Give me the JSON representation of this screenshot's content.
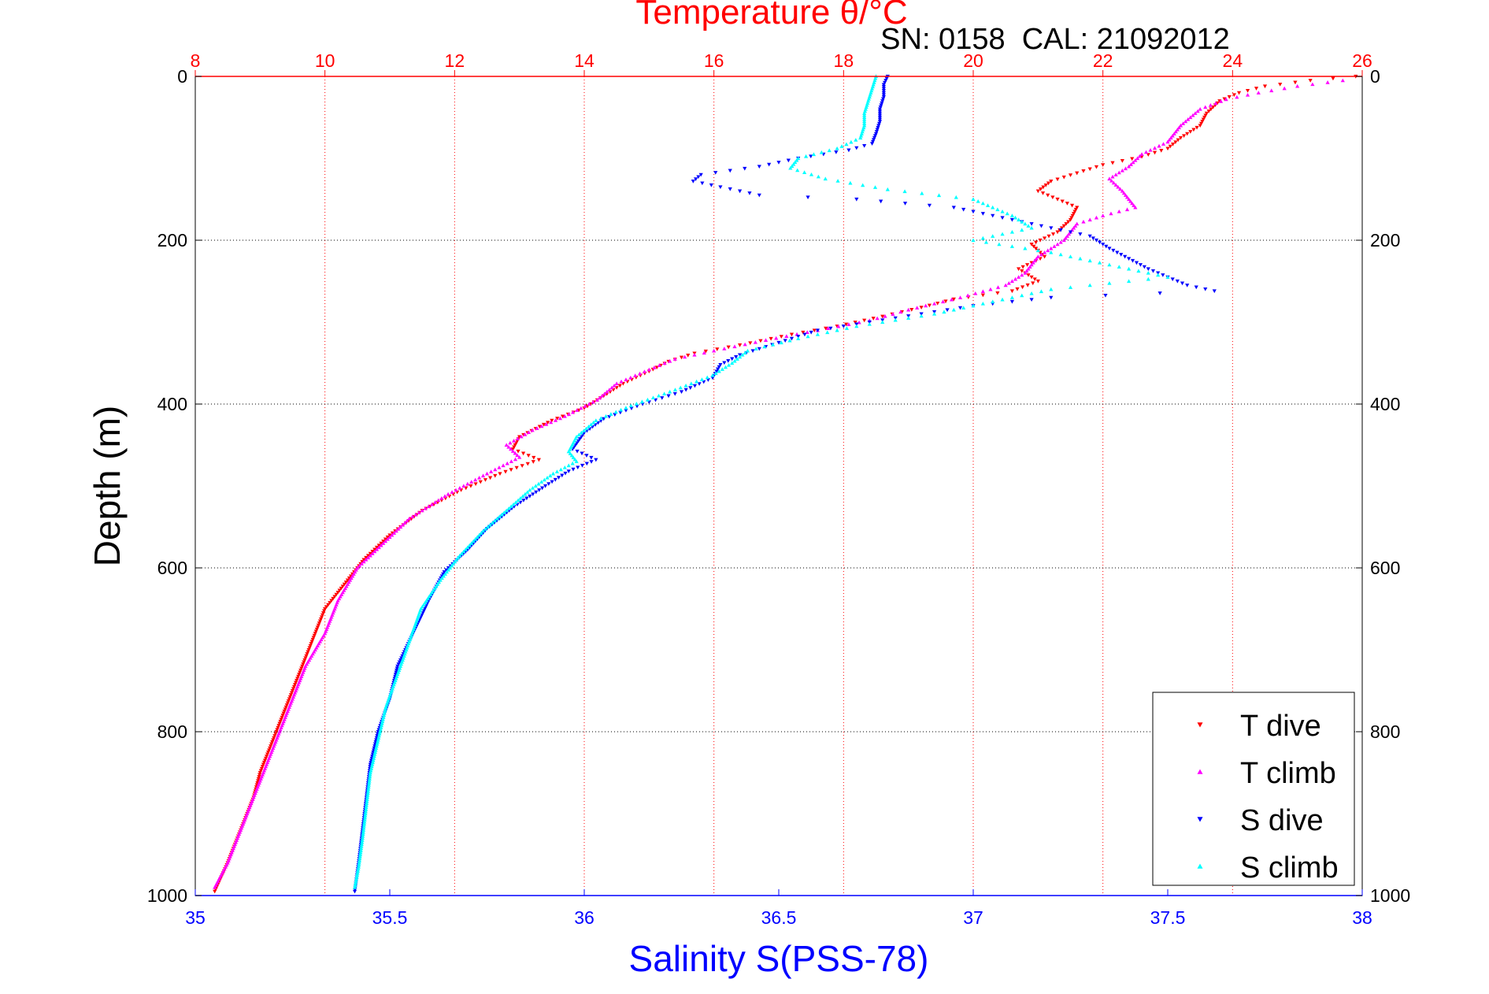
{
  "chart_data": {
    "type": "scatter",
    "title": "Temperature θ/°C",
    "subtitle": "SN: 0158  CAL: 21092012",
    "xlabel": "Salinity S(PSS-78)",
    "ylabel": "Depth (m)",
    "x_bottom": {
      "range": [
        35,
        38
      ],
      "ticks": [
        "35",
        "35.5",
        "36",
        "36.5",
        "37",
        "37.5",
        "38"
      ],
      "color": "#0000ff"
    },
    "x_top": {
      "range": [
        8,
        26
      ],
      "ticks": [
        "8",
        "10",
        "12",
        "14",
        "16",
        "18",
        "20",
        "22",
        "24",
        "26"
      ],
      "color": "#ff0000"
    },
    "y": {
      "range": [
        0,
        1000
      ],
      "reversed": true,
      "ticks": [
        "0",
        "200",
        "400",
        "600",
        "800",
        "1000"
      ]
    },
    "grid": true,
    "legend_position": "bottom-right",
    "series": [
      {
        "name": "T dive",
        "axis": "temperature",
        "color": "#ff0000",
        "marker": "triangle-down",
        "points": [
          [
            25.9,
            0
          ],
          [
            25.2,
            5
          ],
          [
            24.5,
            12
          ],
          [
            24.1,
            20
          ],
          [
            23.8,
            30
          ],
          [
            23.6,
            45
          ],
          [
            23.5,
            60
          ],
          [
            23.2,
            75
          ],
          [
            23.0,
            88
          ],
          [
            22.6,
            98
          ],
          [
            22.0,
            108
          ],
          [
            21.6,
            118
          ],
          [
            21.2,
            128
          ],
          [
            21.0,
            140
          ],
          [
            21.3,
            150
          ],
          [
            21.6,
            160
          ],
          [
            21.5,
            175
          ],
          [
            21.3,
            190
          ],
          [
            20.9,
            205
          ],
          [
            21.1,
            220
          ],
          [
            20.7,
            235
          ],
          [
            21.0,
            250
          ],
          [
            20.6,
            262
          ],
          [
            19.7,
            272
          ],
          [
            19.2,
            282
          ],
          [
            18.6,
            293
          ],
          [
            17.9,
            305
          ],
          [
            17.2,
            315
          ],
          [
            16.4,
            328
          ],
          [
            15.7,
            338
          ],
          [
            15.3,
            348
          ],
          [
            15.0,
            360
          ],
          [
            14.6,
            375
          ],
          [
            14.3,
            390
          ],
          [
            14.0,
            405
          ],
          [
            13.5,
            420
          ],
          [
            13.0,
            440
          ],
          [
            12.9,
            455
          ],
          [
            13.3,
            468
          ],
          [
            12.7,
            485
          ],
          [
            12.1,
            505
          ],
          [
            11.5,
            530
          ],
          [
            11.0,
            560
          ],
          [
            10.6,
            590
          ],
          [
            10.3,
            620
          ],
          [
            10.0,
            650
          ],
          [
            9.8,
            690
          ],
          [
            9.6,
            730
          ],
          [
            9.4,
            770
          ],
          [
            9.2,
            810
          ],
          [
            9.0,
            850
          ],
          [
            8.9,
            880
          ],
          [
            8.7,
            920
          ],
          [
            8.5,
            960
          ],
          [
            8.3,
            995
          ]
        ]
      },
      {
        "name": "T climb",
        "axis": "temperature",
        "color": "#ff00ff",
        "marker": "triangle-up",
        "points": [
          [
            25.7,
            5
          ],
          [
            25.0,
            12
          ],
          [
            24.4,
            20
          ],
          [
            23.9,
            28
          ],
          [
            23.5,
            40
          ],
          [
            23.2,
            60
          ],
          [
            23.0,
            80
          ],
          [
            22.6,
            95
          ],
          [
            22.4,
            110
          ],
          [
            22.1,
            125
          ],
          [
            22.3,
            140
          ],
          [
            22.5,
            160
          ],
          [
            22.0,
            170
          ],
          [
            21.6,
            180
          ],
          [
            21.4,
            200
          ],
          [
            21.0,
            220
          ],
          [
            20.8,
            240
          ],
          [
            20.5,
            255
          ],
          [
            19.8,
            270
          ],
          [
            19.0,
            285
          ],
          [
            18.4,
            298
          ],
          [
            17.6,
            310
          ],
          [
            16.8,
            322
          ],
          [
            16.0,
            335
          ],
          [
            15.4,
            345
          ],
          [
            15.0,
            358
          ],
          [
            14.5,
            375
          ],
          [
            14.2,
            395
          ],
          [
            13.7,
            415
          ],
          [
            13.2,
            432
          ],
          [
            12.8,
            450
          ],
          [
            13.0,
            465
          ],
          [
            12.5,
            485
          ],
          [
            11.9,
            510
          ],
          [
            11.3,
            540
          ],
          [
            10.9,
            570
          ],
          [
            10.5,
            600
          ],
          [
            10.2,
            640
          ],
          [
            10.0,
            680
          ],
          [
            9.7,
            720
          ],
          [
            9.5,
            760
          ],
          [
            9.3,
            800
          ],
          [
            9.1,
            840
          ],
          [
            8.9,
            880
          ],
          [
            8.7,
            920
          ],
          [
            8.5,
            960
          ],
          [
            8.3,
            990
          ]
        ]
      },
      {
        "name": "S dive",
        "axis": "salinity",
        "color": "#0000ff",
        "marker": "triangle-down",
        "points": [
          [
            36.78,
            0
          ],
          [
            36.77,
            10
          ],
          [
            36.77,
            25
          ],
          [
            36.76,
            40
          ],
          [
            36.76,
            55
          ],
          [
            36.75,
            70
          ],
          [
            36.74,
            82
          ],
          [
            36.68,
            90
          ],
          [
            36.55,
            100
          ],
          [
            36.45,
            110
          ],
          [
            36.3,
            120
          ],
          [
            36.28,
            128
          ],
          [
            36.35,
            135
          ],
          [
            36.45,
            145
          ],
          [
            36.7,
            150
          ],
          [
            36.95,
            160
          ],
          [
            37.1,
            175
          ],
          [
            37.3,
            195
          ],
          [
            37.35,
            210
          ],
          [
            37.45,
            235
          ],
          [
            37.55,
            255
          ],
          [
            37.62,
            262
          ],
          [
            37.2,
            270
          ],
          [
            37.0,
            280
          ],
          [
            36.8,
            295
          ],
          [
            36.6,
            310
          ],
          [
            36.5,
            325
          ],
          [
            36.4,
            340
          ],
          [
            36.35,
            352
          ],
          [
            36.33,
            368
          ],
          [
            36.25,
            385
          ],
          [
            36.15,
            400
          ],
          [
            36.05,
            418
          ],
          [
            36.0,
            435
          ],
          [
            35.97,
            455
          ],
          [
            36.03,
            468
          ],
          [
            35.96,
            482
          ],
          [
            35.9,
            500
          ],
          [
            35.82,
            525
          ],
          [
            35.75,
            552
          ],
          [
            35.7,
            578
          ],
          [
            35.64,
            605
          ],
          [
            35.6,
            640
          ],
          [
            35.56,
            680
          ],
          [
            35.52,
            720
          ],
          [
            35.5,
            760
          ],
          [
            35.47,
            800
          ],
          [
            35.45,
            840
          ],
          [
            35.44,
            880
          ],
          [
            35.43,
            920
          ],
          [
            35.42,
            960
          ],
          [
            35.41,
            995
          ]
        ]
      },
      {
        "name": "S climb",
        "axis": "salinity",
        "color": "#00ffff",
        "marker": "triangle-up",
        "points": [
          [
            36.75,
            0
          ],
          [
            36.74,
            15
          ],
          [
            36.73,
            30
          ],
          [
            36.72,
            45
          ],
          [
            36.72,
            60
          ],
          [
            36.71,
            75
          ],
          [
            36.65,
            88
          ],
          [
            36.55,
            100
          ],
          [
            36.53,
            112
          ],
          [
            36.62,
            125
          ],
          [
            36.78,
            138
          ],
          [
            37.0,
            150
          ],
          [
            37.1,
            170
          ],
          [
            37.15,
            185
          ],
          [
            37.0,
            200
          ],
          [
            37.2,
            215
          ],
          [
            37.35,
            230
          ],
          [
            37.5,
            245
          ],
          [
            37.2,
            260
          ],
          [
            37.05,
            275
          ],
          [
            36.9,
            290
          ],
          [
            36.7,
            305
          ],
          [
            36.55,
            320
          ],
          [
            36.42,
            335
          ],
          [
            36.38,
            350
          ],
          [
            36.33,
            365
          ],
          [
            36.22,
            385
          ],
          [
            36.12,
            402
          ],
          [
            36.03,
            420
          ],
          [
            35.98,
            440
          ],
          [
            35.96,
            458
          ],
          [
            35.98,
            470
          ],
          [
            35.92,
            485
          ],
          [
            35.86,
            505
          ],
          [
            35.8,
            530
          ],
          [
            35.74,
            555
          ],
          [
            35.68,
            585
          ],
          [
            35.63,
            615
          ],
          [
            35.58,
            650
          ],
          [
            35.55,
            690
          ],
          [
            35.52,
            730
          ],
          [
            35.49,
            770
          ],
          [
            35.47,
            810
          ],
          [
            35.45,
            850
          ],
          [
            35.44,
            890
          ],
          [
            35.43,
            930
          ],
          [
            35.42,
            965
          ],
          [
            35.41,
            990
          ]
        ]
      }
    ]
  }
}
